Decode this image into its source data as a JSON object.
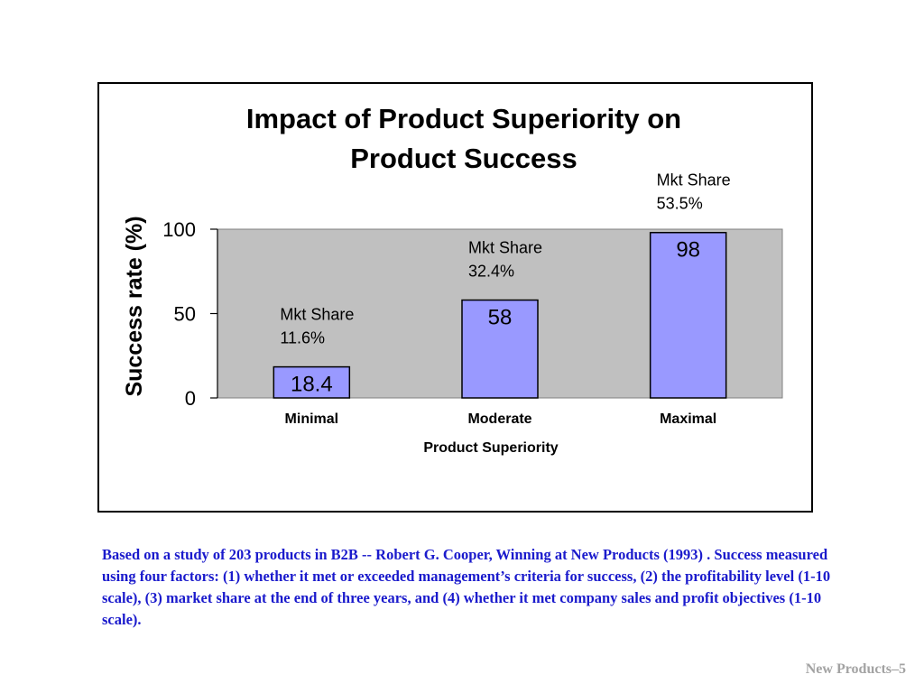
{
  "chart_data": {
    "type": "bar",
    "title_lines": [
      "Impact of Product Superiority on",
      "Product Success"
    ],
    "xlabel": "Product Superiority",
    "ylabel": "Success rate (%)",
    "categories": [
      "Minimal",
      "Moderate",
      "Maximal"
    ],
    "values": [
      18.4,
      58,
      98
    ],
    "value_labels": [
      "18.4",
      "58",
      "98"
    ],
    "annotations": [
      {
        "line1": "Mkt Share",
        "line2": "11.6%"
      },
      {
        "line1": "Mkt Share",
        "line2": "32.4%"
      },
      {
        "line1": "Mkt Share",
        "line2": "53.5%"
      }
    ],
    "ylim": [
      0,
      100
    ],
    "yticks": [
      0,
      50,
      100
    ],
    "grid": false,
    "legend": "none",
    "colors": {
      "bar": "#9999ff",
      "plot_background": "#c0c0c0",
      "border": "#000000"
    }
  },
  "footnote": "Based on a study of 203 products in B2B -- Robert G. Cooper, Winning at New Products (1993) . Success measured using four factors: (1) whether it met or exceeded management’s criteria for success, (2) the profitability level (1-10 scale), (3) market share at the end of three years, and (4) whether it met company sales and profit objectives (1-10 scale).",
  "slide_number": "New Products–5",
  "colors": {
    "footnote_text": "#1a1acc",
    "slide_number_text": "#a3a3a3"
  }
}
